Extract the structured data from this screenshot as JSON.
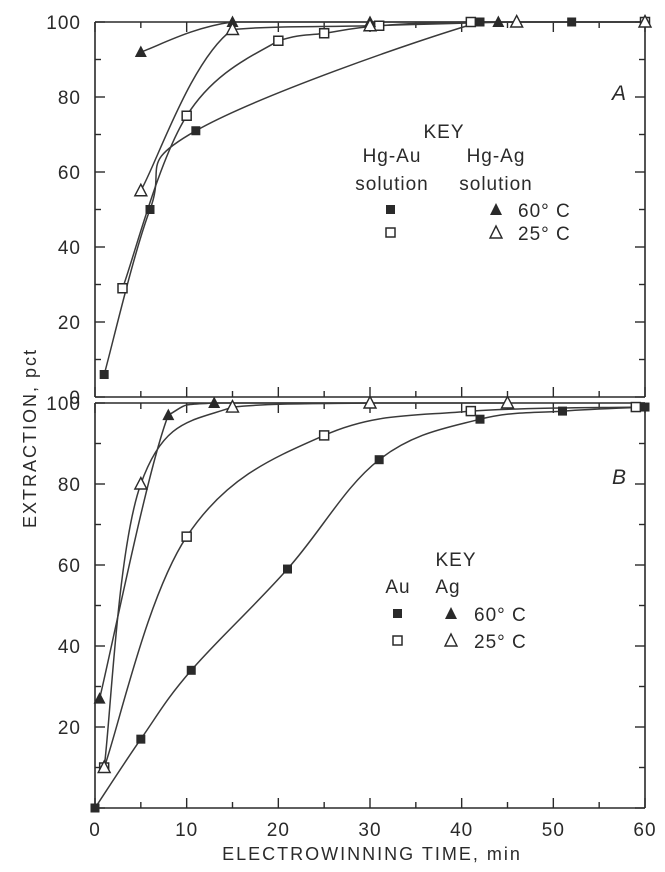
{
  "chart_data": [
    {
      "type": "scatter",
      "panel_label": "A",
      "xlim": [
        0,
        60
      ],
      "ylim": [
        0,
        100
      ],
      "y_ticks": [
        "0",
        "20",
        "40",
        "60",
        "80",
        "100"
      ],
      "grid": false,
      "legend": {
        "title": "KEY",
        "header_1": "Hg-Au",
        "header_1b": "solution",
        "header_2": "Hg-Ag",
        "header_2b": "solution",
        "row_60": "60° C",
        "row_25": "25° C"
      },
      "series": [
        {
          "metal": "Au",
          "temperature": "60° C",
          "marker": "filled-square",
          "x": [
            1,
            6,
            11,
            42,
            52,
            60
          ],
          "y": [
            6,
            50,
            71,
            100,
            100,
            100
          ]
        },
        {
          "metal": "Au",
          "temperature": "25° C",
          "marker": "open-square",
          "x": [
            3,
            10,
            20,
            25,
            31,
            41,
            60
          ],
          "y": [
            29,
            75,
            95,
            97,
            99,
            100,
            100
          ]
        },
        {
          "metal": "Ag",
          "temperature": "60° C",
          "marker": "filled-triangle",
          "x": [
            5,
            15,
            30,
            44
          ],
          "y": [
            92,
            100,
            100,
            100
          ]
        },
        {
          "metal": "Ag",
          "temperature": "25° C",
          "marker": "open-triangle",
          "x": [
            5,
            15,
            30,
            46,
            60
          ],
          "y": [
            55,
            98,
            99,
            100,
            100
          ]
        }
      ]
    },
    {
      "type": "scatter",
      "panel_label": "B",
      "xlim": [
        0,
        60
      ],
      "ylim": [
        0,
        100
      ],
      "x_ticks": [
        "0",
        "10",
        "20",
        "30",
        "40",
        "50",
        "60"
      ],
      "y_ticks": [
        "20",
        "40",
        "60",
        "80",
        "100"
      ],
      "grid": false,
      "xlabel": "ELECTROWINNING TIME, min",
      "legend": {
        "title": "KEY",
        "header_1": "Au",
        "header_2": "Ag",
        "row_60": "60° C",
        "row_25": "25° C"
      },
      "series": [
        {
          "metal": "Au",
          "temperature": "60° C",
          "marker": "filled-square",
          "x": [
            0,
            5,
            10.5,
            21,
            31,
            42,
            51,
            60
          ],
          "y": [
            0,
            17,
            34,
            59,
            86,
            96,
            98,
            99
          ]
        },
        {
          "metal": "Au",
          "temperature": "25° C",
          "marker": "open-square",
          "x": [
            1,
            10,
            25,
            41,
            59
          ],
          "y": [
            10,
            67,
            92,
            98,
            99
          ]
        },
        {
          "metal": "Ag",
          "temperature": "60° C",
          "marker": "filled-triangle",
          "x": [
            0.5,
            8,
            13,
            30
          ],
          "y": [
            27,
            97,
            100,
            100
          ]
        },
        {
          "metal": "Ag",
          "temperature": "25° C",
          "marker": "open-triangle",
          "x": [
            1,
            5,
            15,
            30,
            45
          ],
          "y": [
            10,
            80,
            99,
            100,
            100
          ]
        }
      ]
    }
  ],
  "ylabel": "EXTRACTION,  pct",
  "colors": {
    "ink": "#2a2a2a",
    "background": "#ffffff"
  }
}
